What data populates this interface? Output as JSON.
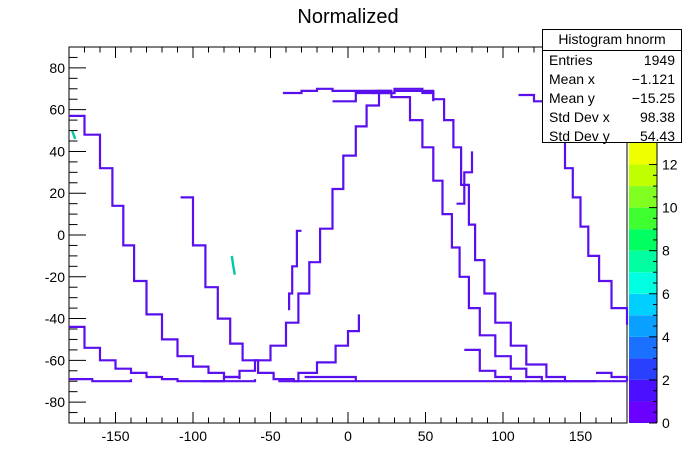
{
  "title": "Normalized",
  "colors": {
    "curve": "#5a10ee",
    "palette": [
      "#6a00ff",
      "#4a10ff",
      "#2a40ff",
      "#1a70ff",
      "#0aa0ff",
      "#00d0ff",
      "#00ffe0",
      "#00ffa0",
      "#00ff60",
      "#40ff30",
      "#80ff20",
      "#c0ff00",
      "#f0ff00"
    ]
  },
  "stats": {
    "title": "Histogram hnorm",
    "rows": [
      {
        "label": "Entries",
        "value": "1949"
      },
      {
        "label": "Mean x",
        "value": "−1.121"
      },
      {
        "label": "Mean y",
        "value": "−15.25"
      },
      {
        "label": "Std Dev x",
        "value": "98.38"
      },
      {
        "label": "Std Dev y",
        "value": "54.43"
      }
    ]
  },
  "chart_data": {
    "type": "heatmap",
    "title": "Normalized",
    "xlim": [
      -180,
      180
    ],
    "ylim": [
      -90,
      90
    ],
    "xticks": [
      -150,
      -100,
      -50,
      0,
      50,
      100,
      150
    ],
    "yticks": [
      -80,
      -60,
      -40,
      -20,
      0,
      20,
      40,
      60,
      80
    ],
    "z_range": [
      0,
      13
    ],
    "z_ticks": [
      0,
      2,
      4,
      6,
      8,
      10,
      12
    ],
    "grid": false,
    "curves": [
      {
        "points": [
          [
            -180,
            57
          ],
          [
            -170,
            48
          ],
          [
            -160,
            32
          ],
          [
            -152,
            14
          ],
          [
            -145,
            -5
          ],
          [
            -138,
            -22
          ],
          [
            -130,
            -38
          ],
          [
            -120,
            -50
          ],
          [
            -110,
            -58
          ],
          [
            -100,
            -63
          ],
          [
            -90,
            -66
          ],
          [
            -80,
            -68
          ],
          [
            -70,
            -69
          ]
        ]
      },
      {
        "points": [
          [
            -108,
            18
          ],
          [
            -100,
            -5
          ],
          [
            -92,
            -25
          ],
          [
            -84,
            -40
          ],
          [
            -76,
            -52
          ],
          [
            -68,
            -60
          ],
          [
            -58,
            -66
          ],
          [
            -48,
            -69
          ],
          [
            -35,
            -70
          ],
          [
            -20,
            -70
          ],
          [
            0,
            -70
          ],
          [
            20,
            -70
          ],
          [
            50,
            -70
          ],
          [
            80,
            -70
          ],
          [
            110,
            -70
          ],
          [
            140,
            -70
          ],
          [
            165,
            -70
          ],
          [
            180,
            -70
          ]
        ]
      },
      {
        "points": [
          [
            -180,
            -69
          ],
          [
            -165,
            -70
          ],
          [
            -150,
            -70
          ],
          [
            -140,
            -69
          ]
        ]
      },
      {
        "points": [
          [
            -180,
            -44
          ],
          [
            -170,
            -54
          ],
          [
            -160,
            -60
          ],
          [
            -150,
            -64
          ],
          [
            -140,
            -66
          ],
          [
            -130,
            -68
          ],
          [
            -120,
            -69
          ],
          [
            -110,
            -70
          ],
          [
            -100,
            -70
          ],
          [
            -90,
            -70
          ],
          [
            -80,
            -70
          ],
          [
            -70,
            -70
          ],
          [
            -60,
            -69
          ]
        ]
      },
      {
        "points": [
          [
            -95,
            -70
          ],
          [
            -80,
            -68
          ],
          [
            -70,
            -65
          ],
          [
            -60,
            -60
          ],
          [
            -50,
            -53
          ],
          [
            -40,
            -42
          ],
          [
            -32,
            -28
          ],
          [
            -25,
            -13
          ],
          [
            -18,
            3
          ],
          [
            -10,
            22
          ],
          [
            -3,
            38
          ],
          [
            5,
            52
          ],
          [
            12,
            62
          ],
          [
            20,
            68
          ],
          [
            30,
            70
          ],
          [
            40,
            70
          ],
          [
            48,
            68
          ],
          [
            55,
            64
          ]
        ]
      },
      {
        "points": [
          [
            -45,
            -70
          ],
          [
            -32,
            -66
          ],
          [
            -20,
            -61
          ],
          [
            -8,
            -53
          ],
          [
            0,
            -46
          ],
          [
            7,
            -38
          ]
        ]
      },
      {
        "points": [
          [
            -42,
            68
          ],
          [
            -30,
            69
          ],
          [
            -20,
            70
          ],
          [
            -10,
            69
          ],
          [
            0,
            69
          ],
          [
            15,
            69
          ],
          [
            28,
            69
          ]
        ]
      },
      {
        "points": [
          [
            -10,
            64
          ],
          [
            5,
            68
          ],
          [
            18,
            69
          ],
          [
            28,
            66
          ],
          [
            40,
            55
          ],
          [
            48,
            42
          ],
          [
            55,
            26
          ],
          [
            61,
            10
          ],
          [
            67,
            -6
          ],
          [
            72,
            -20
          ],
          [
            78,
            -35
          ],
          [
            85,
            -48
          ],
          [
            95,
            -58
          ],
          [
            105,
            -64
          ],
          [
            115,
            -68
          ],
          [
            125,
            -70
          ],
          [
            140,
            -70
          ],
          [
            160,
            -70
          ]
        ]
      },
      {
        "points": [
          [
            75,
            -55
          ],
          [
            85,
            -65
          ],
          [
            95,
            -68
          ],
          [
            105,
            -70
          ],
          [
            115,
            -70
          ]
        ]
      },
      {
        "points": [
          [
            -28,
            -68
          ],
          [
            -10,
            -68
          ],
          [
            5,
            -70
          ]
        ]
      },
      {
        "points": [
          [
            15,
            68
          ],
          [
            30,
            69
          ],
          [
            45,
            69
          ],
          [
            55,
            65
          ],
          [
            62,
            55
          ],
          [
            68,
            42
          ],
          [
            73,
            24
          ],
          [
            78,
            5
          ],
          [
            82,
            -12
          ],
          [
            88,
            -28
          ],
          [
            95,
            -42
          ],
          [
            105,
            -53
          ],
          [
            115,
            -62
          ],
          [
            128,
            -68
          ],
          [
            140,
            -70
          ]
        ]
      },
      {
        "points": [
          [
            70,
            15
          ],
          [
            75,
            30
          ],
          [
            80,
            40
          ]
        ]
      },
      {
        "points": [
          [
            110,
            67
          ],
          [
            120,
            64
          ],
          [
            128,
            57
          ],
          [
            135,
            45
          ],
          [
            140,
            32
          ],
          [
            145,
            18
          ],
          [
            150,
            4
          ],
          [
            155,
            -10
          ],
          [
            162,
            -22
          ],
          [
            170,
            -35
          ],
          [
            180,
            -43
          ]
        ]
      },
      {
        "points": [
          [
            -30,
            2
          ],
          [
            -33,
            -15
          ],
          [
            -36,
            -28
          ],
          [
            -38,
            -36
          ]
        ]
      },
      {
        "points": [
          [
            160,
            -66
          ],
          [
            170,
            -68
          ],
          [
            180,
            -70
          ]
        ]
      }
    ],
    "blobs": [
      {
        "points": [
          [
            -75,
            -10
          ],
          [
            -74,
            -15
          ],
          [
            -73,
            -19
          ]
        ]
      },
      {
        "points": [
          [
            -178,
            50
          ],
          [
            -176,
            46
          ]
        ]
      }
    ]
  }
}
